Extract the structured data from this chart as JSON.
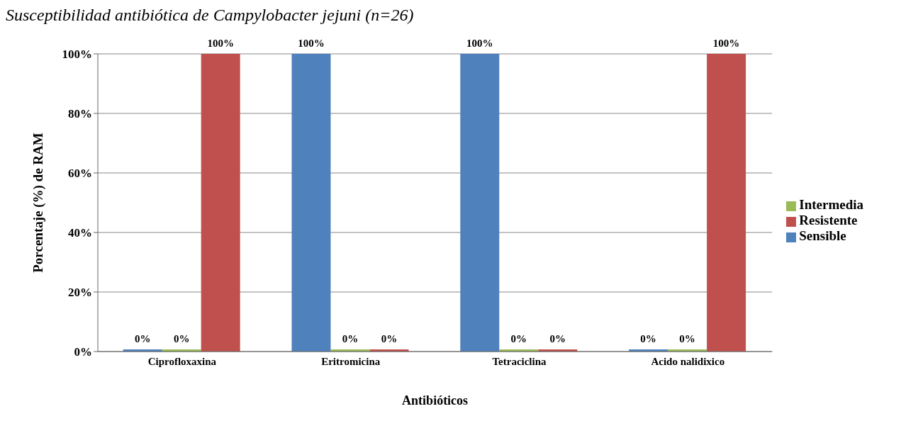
{
  "chart_data": {
    "type": "bar",
    "title": "Susceptibilidad antibiótica de Campylobacter jejuni (n=26)",
    "xlabel": "Antibióticos",
    "ylabel": "Porcentaje (%) de  RAM",
    "categories": [
      "Ciprofloxaxina",
      "Eritromicina",
      "Tetraciclina",
      "Acido nalidixico"
    ],
    "series": [
      {
        "name": "Sensible",
        "color": "#4f81bd",
        "values": [
          0,
          100,
          100,
          0
        ],
        "value_labels": [
          "0%",
          "100%",
          "100%",
          "0%"
        ]
      },
      {
        "name": "Intermedia",
        "color": "#9bbb59",
        "values": [
          0,
          0,
          0,
          0
        ],
        "value_labels": [
          "0%",
          "0%",
          "0%",
          "0%"
        ]
      },
      {
        "name": "Resistente",
        "color": "#c0504d",
        "values": [
          100,
          0,
          0,
          100
        ],
        "value_labels": [
          "100%",
          "0%",
          "0%",
          "100%"
        ]
      }
    ],
    "ylim": [
      0,
      100
    ],
    "yticks": [
      {
        "value": 0,
        "label": "0%"
      },
      {
        "value": 20,
        "label": "20%"
      },
      {
        "value": 40,
        "label": "40%"
      },
      {
        "value": 60,
        "label": "60%"
      },
      {
        "value": 80,
        "label": "80%"
      },
      {
        "value": 100,
        "label": "100%"
      }
    ],
    "grid": "y",
    "legend": "right"
  }
}
